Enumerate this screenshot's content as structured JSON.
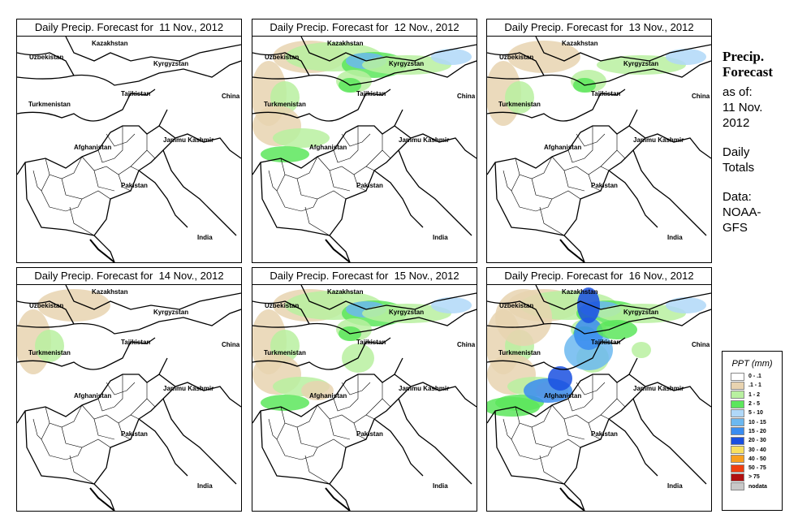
{
  "panels": [
    {
      "title": "Daily Precip. Forecast for  11 Nov., 2012",
      "level": 0
    },
    {
      "title": "Daily Precip. Forecast for  12 Nov., 2012",
      "level": 2
    },
    {
      "title": "Daily Precip. Forecast for  13 Nov., 2012",
      "level": 1
    },
    {
      "title": "Daily Precip. Forecast for  14 Nov., 2012",
      "level": 0.5
    },
    {
      "title": "Daily Precip. Forecast for  15 Nov., 2012",
      "level": 2.5
    },
    {
      "title": "Daily Precip. Forecast for  16 Nov., 2012",
      "level": 3.5
    }
  ],
  "map_labels": {
    "kazakhstan": "Kazakhstan",
    "uzbekistan": "Uzbekistan",
    "kyrgyzstan": "Kyrgyzstan",
    "tajikistan": "Tajikistan",
    "china": "China",
    "turkmenistan": "Turkmenistan",
    "afghanistan": "Afghanistan",
    "jammu_kashmir": "Jammu Kashmir",
    "pakistan": "Pakistan",
    "india": "India"
  },
  "sidebar": {
    "title_line1": "Precip.",
    "title_line2": "Forecast",
    "asof_line1": "as of:",
    "asof_line2": "11 Nov.",
    "asof_line3": "2012",
    "totals_line1": "Daily",
    "totals_line2": "Totals",
    "data_line1": "Data:",
    "data_line2": "NOAA-",
    "data_line3": "GFS"
  },
  "legend": {
    "title": "PPT (mm)",
    "items": [
      {
        "label": "0 - .1",
        "color": "#ffffff"
      },
      {
        "label": ".1 - 1",
        "color": "#e8d3b0"
      },
      {
        "label": "1 - 2",
        "color": "#b8f0a0"
      },
      {
        "label": "2 - 5",
        "color": "#5ce65c"
      },
      {
        "label": "5 - 10",
        "color": "#b0d8f8"
      },
      {
        "label": "10 - 15",
        "color": "#6cb8f0"
      },
      {
        "label": "15 - 20",
        "color": "#3a8cf0"
      },
      {
        "label": "20 - 30",
        "color": "#1a50e0"
      },
      {
        "label": "30 - 40",
        "color": "#f8e060"
      },
      {
        "label": "40 - 50",
        "color": "#f8a020"
      },
      {
        "label": "50 - 75",
        "color": "#f04010"
      },
      {
        "label": "> 75",
        "color": "#b01010"
      },
      {
        "label": "nodata",
        "color": "#c8c8c8"
      }
    ]
  }
}
